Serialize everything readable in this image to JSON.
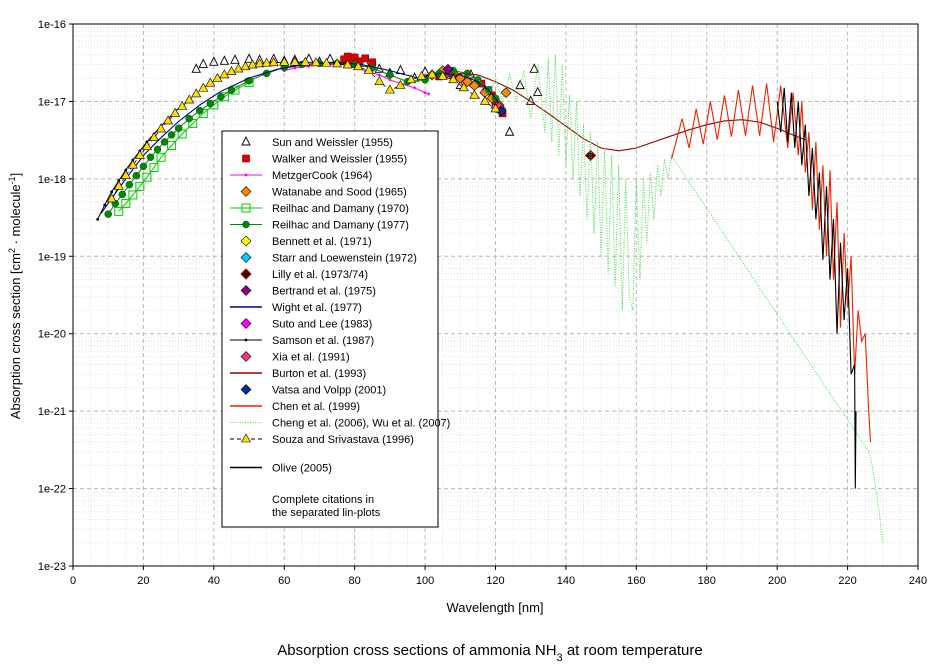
{
  "chart_data": {
    "type": "line",
    "title": "",
    "caption": "Absorption cross sections of ammonia NH3 at room temperature",
    "xlabel": "Wavelength [nm]",
    "ylabel": "Absorption cross section [cm2 · molecule-1]",
    "xlim": [
      0,
      240
    ],
    "ylim_log10": [
      -23,
      -16
    ],
    "yscale": "log",
    "grid": true,
    "legend_position": "center-left",
    "x_ticks": [
      "0",
      "20",
      "40",
      "60",
      "80",
      "100",
      "120",
      "140",
      "160",
      "180",
      "200",
      "220",
      "240"
    ],
    "y_ticks": [
      "1e-23",
      "1e-22",
      "1e-21",
      "1e-20",
      "1e-19",
      "1e-18",
      "1e-17",
      "1e-16"
    ],
    "legend_note": [
      "Complete citations in",
      "the separated lin-plots"
    ],
    "series": [
      {
        "name": "Sun and Weissler (1955)",
        "color": "#000000",
        "marker": "triangle-open",
        "x": [
          35,
          37,
          40,
          43,
          46,
          50,
          53,
          57,
          60,
          63,
          67,
          70,
          73,
          77,
          80,
          83,
          87,
          90,
          93,
          97,
          100,
          105,
          110,
          113,
          117,
          120,
          124,
          127,
          130,
          131,
          132
        ],
        "y": [
          2.6e-17,
          3e-17,
          3.2e-17,
          3.3e-17,
          3.4e-17,
          3.5e-17,
          3.4e-17,
          3.5e-17,
          3.3e-17,
          3.4e-17,
          3.5e-17,
          3.2e-17,
          3.5e-17,
          3.3e-17,
          3e-17,
          3.1e-17,
          2.6e-17,
          2.3e-17,
          2.5e-17,
          2e-17,
          2.4e-17,
          2.2e-17,
          1.6e-17,
          2.2e-17,
          1.4e-17,
          9e-18,
          4e-18,
          1.6e-17,
          1e-17,
          2.6e-17,
          1.3e-17
        ]
      },
      {
        "name": "Walker and Weissler (1955)",
        "color": "#dd0000",
        "marker": "square-filled",
        "x": [
          77,
          78,
          79,
          80,
          81,
          83,
          85,
          104,
          106,
          108,
          116,
          118,
          119,
          120,
          121,
          122
        ],
        "y": [
          3.5e-17,
          3.8e-17,
          3.4e-17,
          3.7e-17,
          3.3e-17,
          3.6e-17,
          3.2e-17,
          2.1e-17,
          2.4e-17,
          2.2e-17,
          1.7e-17,
          1.4e-17,
          1.2e-17,
          1e-17,
          8e-18,
          7e-18
        ]
      },
      {
        "name": "MetzgerCook (1964)",
        "color": "#ff00ff",
        "marker": "dot-line",
        "x": [
          60,
          63,
          67,
          70,
          73,
          77,
          80,
          83,
          87,
          90,
          93,
          97,
          100,
          101
        ],
        "y": [
          2.5e-17,
          2.7e-17,
          2.85e-17,
          2.95e-17,
          3e-17,
          3e-17,
          2.8e-17,
          2.5e-17,
          2.2e-17,
          1.9e-17,
          1.7e-17,
          1.5e-17,
          1.3e-17,
          1.25e-17
        ]
      },
      {
        "name": "Watanabe and Sood (1965)",
        "color": "#ff8800",
        "marker": "diamond-filled",
        "x": [
          102,
          105,
          108,
          110,
          112,
          114,
          117,
          119,
          121,
          123
        ],
        "y": [
          2.2e-17,
          2.5e-17,
          2.3e-17,
          2e-17,
          1.8e-17,
          1.6e-17,
          1.3e-17,
          1.1e-17,
          9e-18,
          1.3e-17
        ]
      },
      {
        "name": "Reilhac and Damany (1970)",
        "color": "#00cc00",
        "marker": "square-open",
        "x": [
          13,
          15,
          17,
          19,
          21,
          23,
          25,
          28,
          31,
          34,
          37,
          40,
          43,
          46,
          50
        ],
        "y": [
          3.8e-19,
          4.8e-19,
          6.2e-19,
          8e-19,
          1.05e-18,
          1.4e-18,
          1.9e-18,
          2.7e-18,
          3.8e-18,
          5.2e-18,
          7e-18,
          9e-18,
          1.15e-17,
          1.4e-17,
          1.75e-17
        ]
      },
      {
        "name": "Reilhac and Damany (1977)",
        "color": "#008800",
        "marker": "circle-filled",
        "x": [
          10,
          12,
          14,
          16,
          18,
          20,
          22,
          24,
          26,
          28,
          30,
          33,
          36,
          39,
          42,
          45,
          50,
          55,
          60,
          65,
          70,
          75,
          80,
          85,
          90,
          95,
          100,
          104,
          108,
          112,
          115,
          118,
          120
        ],
        "y": [
          3.5e-19,
          4.8e-19,
          6.3e-19,
          8.4e-19,
          1.1e-18,
          1.45e-18,
          1.9e-18,
          2.4e-18,
          3e-18,
          3.7e-18,
          4.5e-18,
          6e-18,
          7.6e-18,
          9.4e-18,
          1.15e-17,
          1.4e-17,
          1.85e-17,
          2.3e-17,
          2.75e-17,
          3e-17,
          3.1e-17,
          3.1e-17,
          3e-17,
          2.7e-17,
          2.2e-17,
          1.8e-17,
          1.9e-17,
          2.3e-17,
          2.5e-17,
          2.3e-17,
          1.9e-17,
          1.4e-17,
          1.1e-17
        ]
      },
      {
        "name": "Bennett et al. (1971)",
        "color": "#ffff00",
        "marker": "diamond-filled",
        "x": [],
        "y": []
      },
      {
        "name": "Starr and Loewenstein (1972)",
        "color": "#00ccff",
        "marker": "diamond-filled",
        "x": [
          121.5
        ],
        "y": [
          8e-18
        ]
      },
      {
        "name": "Lilly et al. (1973/74)",
        "color": "#cc0000",
        "marker": "diamond-dark",
        "x": [
          147
        ],
        "y": [
          2e-18
        ]
      },
      {
        "name": "Bertrand et al. (1975)",
        "color": "#880088",
        "marker": "diamond-filled",
        "x": [
          106.5
        ],
        "y": [
          2.6e-17
        ]
      },
      {
        "name": "Wight et al. (1977)",
        "color": "#000088",
        "marker": "line",
        "x": [
          8,
          12,
          16,
          20,
          25,
          30,
          36,
          42,
          50,
          58,
          66,
          74,
          82,
          90,
          98,
          104,
          110,
          115,
          118,
          120,
          122
        ],
        "y": [
          3.6e-19,
          6.5e-19,
          1.15e-18,
          2e-18,
          3.4e-18,
          5.5e-18,
          9e-18,
          1.35e-17,
          2e-17,
          2.6e-17,
          3e-17,
          3.2e-17,
          3e-17,
          2.5e-17,
          2e-17,
          2.3e-17,
          2.2e-17,
          1.8e-17,
          1.4e-17,
          1.1e-17,
          8e-18
        ]
      },
      {
        "name": "Suto and Lee (1983)",
        "color": "#ff00ff",
        "marker": "diamond-filled",
        "x": [],
        "y": []
      },
      {
        "name": "Samson et al. (1987)",
        "color": "#000000",
        "marker": "dot-line",
        "x": [
          7,
          9,
          11,
          13,
          15,
          17,
          19,
          21,
          23,
          25,
          27,
          29,
          31
        ],
        "y": [
          3e-19,
          4.6e-19,
          6.8e-19,
          9.5e-19,
          1.3e-18,
          1.75e-18,
          2.3e-18,
          3e-18,
          3.8e-18,
          4.8e-18,
          6e-18,
          7.4e-18,
          9e-18
        ]
      },
      {
        "name": "Xia et al. (1991)",
        "color": "#ff3377",
        "marker": "diamond-filled",
        "x": [
          121
        ],
        "y": [
          8.5e-18
        ]
      },
      {
        "name": "Burton et al. (1993)",
        "color": "#990000",
        "marker": "line",
        "x": [
          105,
          110,
          115,
          120,
          125,
          130,
          135,
          140,
          145,
          150,
          155,
          160,
          165,
          170,
          175,
          180,
          185,
          190,
          195,
          200,
          205,
          208
        ],
        "y": [
          2e-17,
          2.3e-17,
          2.2e-17,
          1.8e-17,
          1.4e-17,
          1e-17,
          7e-18,
          4.8e-18,
          3.3e-18,
          2.5e-18,
          2.3e-18,
          2.5e-18,
          3e-18,
          3.6e-18,
          4.3e-18,
          5e-18,
          5.6e-18,
          5.8e-18,
          5.4e-18,
          4.5e-18,
          3.6e-18,
          3.2e-18
        ]
      },
      {
        "name": "Vatsa and Volpp (2001)",
        "color": "#003399",
        "marker": "diamond-filled",
        "x": [
          121.6
        ],
        "y": [
          7.5e-18
        ]
      },
      {
        "name": "Chen et al. (1999)",
        "color": "#ee2200",
        "marker": "line",
        "x": [
          170,
          173,
          175,
          177,
          179,
          181,
          183,
          185,
          187,
          189,
          191,
          193,
          195,
          197,
          199,
          201,
          203,
          204.5,
          206,
          207,
          208,
          209,
          210,
          211,
          212,
          213,
          214,
          215,
          216,
          217,
          218,
          219,
          220,
          221,
          222,
          223,
          224,
          225,
          226,
          226.5
        ],
        "y": [
          1.8e-18,
          6e-18,
          2.5e-18,
          8e-18,
          2.8e-18,
          1e-17,
          3.2e-18,
          1.2e-17,
          3.5e-18,
          1.4e-17,
          3.6e-18,
          1.6e-17,
          3.6e-18,
          1.7e-17,
          3e-18,
          1.6e-17,
          2.5e-18,
          1.3e-17,
          2e-18,
          1e-17,
          1.2e-18,
          4e-18,
          4e-19,
          3e-18,
          2.2e-19,
          1.5e-18,
          1e-19,
          1.3e-18,
          5e-20,
          5e-19,
          1.2e-20,
          2e-19,
          2.2e-20,
          1e-19,
          3e-21,
          2e-20,
          8e-21,
          1e-20,
          1e-21,
          4e-22
        ]
      },
      {
        "name": "Cheng et al. (2006), Wu et al. (2007)",
        "color": "#44dd44",
        "marker": "dotted",
        "x": [
          115,
          118,
          120,
          122,
          124,
          126,
          128,
          130,
          132,
          134,
          135,
          136,
          137,
          138,
          139,
          140,
          141,
          142,
          143,
          144,
          145,
          146,
          147,
          148,
          149,
          150,
          151,
          152,
          153,
          154,
          155,
          156,
          157,
          158,
          159,
          160,
          161,
          162,
          163,
          164,
          165,
          166,
          167,
          168,
          169,
          170,
          226,
          227,
          228,
          229,
          229.5,
          230
        ],
        "y": [
          2e-17,
          1.2e-17,
          2e-17,
          1e-17,
          2.2e-17,
          1e-17,
          2.5e-17,
          6e-18,
          3e-17,
          4e-18,
          3.5e-17,
          3e-18,
          4e-17,
          2e-18,
          3e-17,
          1.5e-18,
          1.2e-17,
          1e-18,
          1e-17,
          6e-19,
          5e-18,
          3e-19,
          4e-18,
          2e-19,
          3e-18,
          1e-19,
          2.5e-18,
          6e-20,
          2e-18,
          4e-20,
          1.5e-18,
          2e-20,
          1e-18,
          3e-20,
          2e-20,
          1e-18,
          5e-20,
          1e-18,
          1.5e-19,
          1.2e-18,
          3e-19,
          1.5e-18,
          6e-19,
          1.8e-18,
          1e-18,
          2e-18,
          3e-22,
          2e-22,
          1e-22,
          5e-23,
          3e-23,
          2e-23
        ]
      },
      {
        "name": "Souza and Srivastava (1996)",
        "color": "#ffdd00",
        "marker": "triangle-filled",
        "x": [
          11,
          13,
          15,
          17,
          19,
          21,
          23,
          25,
          27,
          29,
          31,
          33,
          35,
          37,
          39,
          41,
          43,
          45,
          47,
          49,
          51,
          53,
          55,
          57,
          60,
          63,
          66,
          69,
          72,
          75,
          78,
          81,
          84,
          87,
          90,
          93,
          96,
          99,
          102,
          105,
          108,
          111,
          114,
          117,
          120
        ],
        "y": [
          5.5e-19,
          8e-19,
          1.1e-18,
          1.5e-18,
          2e-18,
          2.6e-18,
          3.4e-18,
          4.4e-18,
          5.6e-18,
          7e-18,
          8.6e-18,
          1.04e-17,
          1.25e-17,
          1.48e-17,
          1.72e-17,
          1.97e-17,
          2.2e-17,
          2.42e-17,
          2.62e-17,
          2.8e-17,
          2.95e-17,
          3.05e-17,
          3.1e-17,
          3.15e-17,
          3.2e-17,
          3.2e-17,
          3.2e-17,
          3.15e-17,
          3.1e-17,
          3.05e-17,
          2.95e-17,
          2.8e-17,
          2.5e-17,
          1.8e-17,
          1.4e-17,
          1.6e-17,
          1.9e-17,
          2.1e-17,
          2.2e-17,
          2.1e-17,
          1.9e-17,
          1.5e-17,
          1.2e-17,
          1e-17,
          8e-18
        ]
      },
      {
        "name": "Olive (2005)",
        "color": "#000000",
        "marker": "line",
        "x": [
          200,
          201,
          202,
          203,
          204,
          205,
          206,
          207,
          208,
          209,
          210,
          211,
          212,
          213,
          214,
          215,
          216,
          217,
          218,
          219,
          220,
          221,
          222,
          222.2,
          222.4
        ],
        "y": [
          1e-17,
          4e-18,
          1.5e-17,
          3e-18,
          1.3e-17,
          2.5e-18,
          1e-17,
          1.5e-18,
          5e-18,
          6e-19,
          2.5e-18,
          3e-19,
          1.2e-18,
          9e-20,
          8e-19,
          5e-20,
          3e-19,
          1e-20,
          1.5e-19,
          1.5e-20,
          7e-20,
          3e-21,
          4e-21,
          1e-22,
          1e-21
        ]
      }
    ]
  }
}
